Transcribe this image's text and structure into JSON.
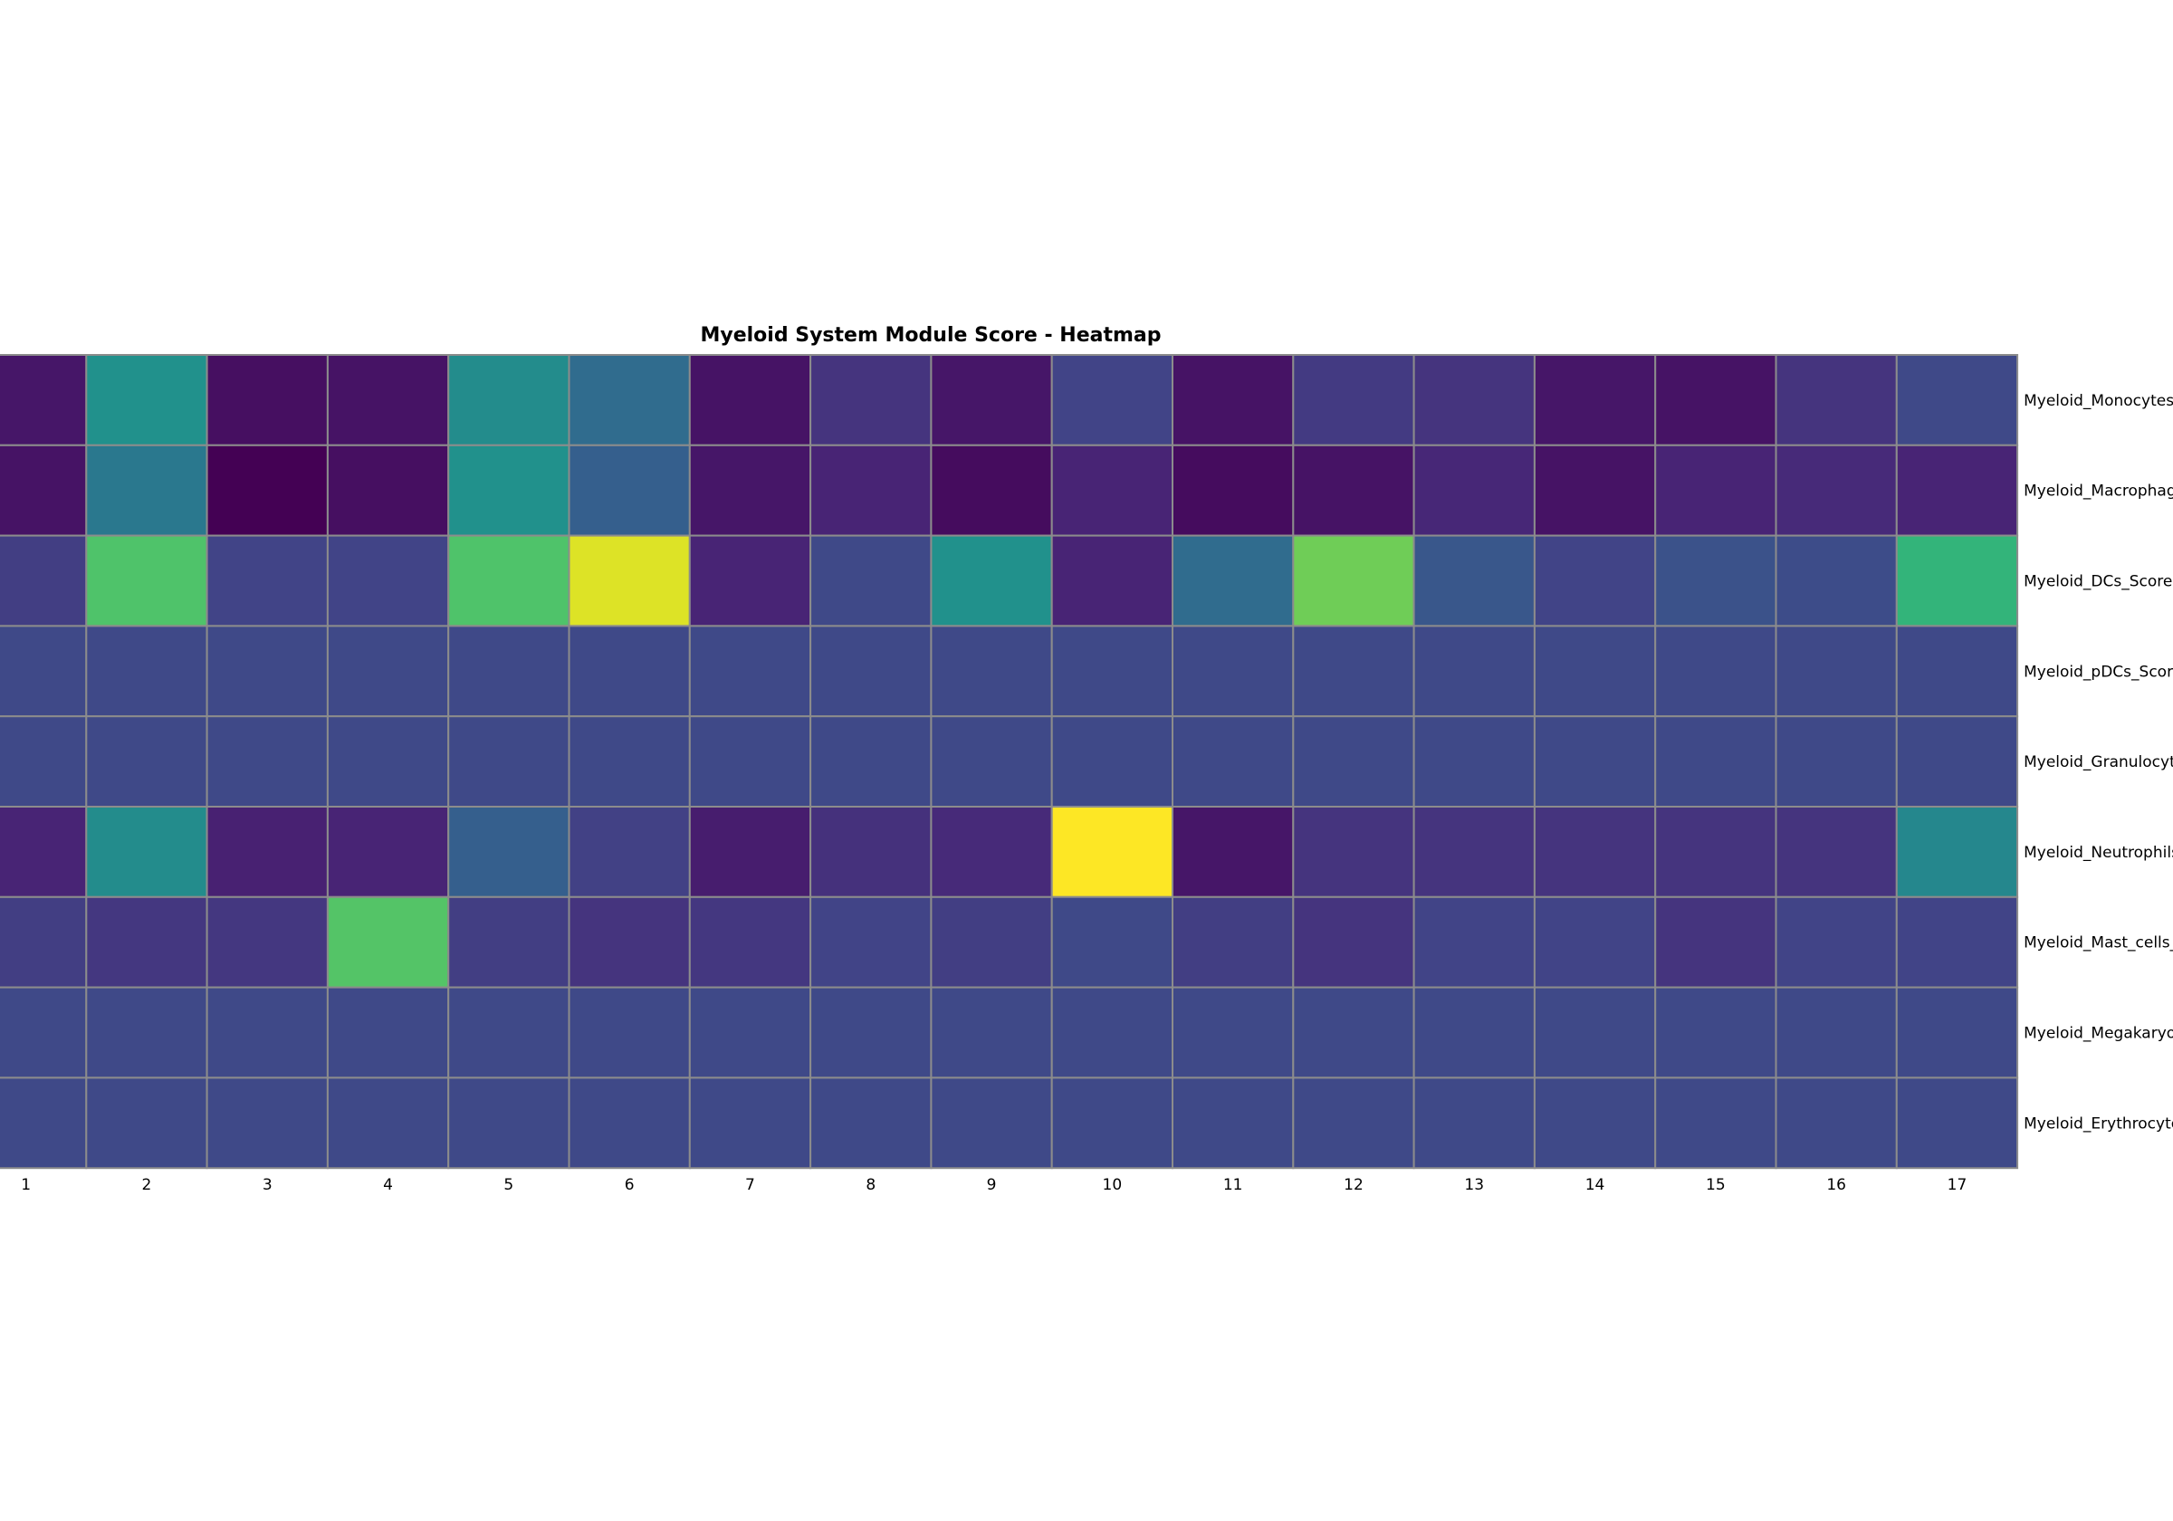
{
  "chart_data": {
    "type": "heatmap",
    "title": "Myeloid System Module Score - Heatmap",
    "colormap": "viridis",
    "x_categories": [
      "1",
      "2",
      "3",
      "4",
      "5",
      "6",
      "7",
      "8",
      "9",
      "10",
      "11",
      "12",
      "13",
      "14",
      "15",
      "16",
      "17"
    ],
    "y_categories": [
      "Myeloid_Monocytes_",
      "Myeloid_Macrophag",
      "Myeloid_DCs_Score",
      "Myeloid_pDCs_Scor",
      "Myeloid_Granulocyt",
      "Myeloid_Neutrophils",
      "Myeloid_Mast_cells_",
      "Myeloid_Megakaryo",
      "Myeloid_Erythrocyte"
    ],
    "values_normalized": [
      [
        0.06,
        0.5,
        0.04,
        0.05,
        0.48,
        0.35,
        0.05,
        0.15,
        0.06,
        0.2,
        0.05,
        0.17,
        0.15,
        0.06,
        0.05,
        0.15,
        0.22
      ],
      [
        0.05,
        0.4,
        0.0,
        0.04,
        0.5,
        0.3,
        0.06,
        0.1,
        0.03,
        0.1,
        0.03,
        0.05,
        0.11,
        0.05,
        0.1,
        0.12,
        0.1
      ],
      [
        0.18,
        0.72,
        0.2,
        0.2,
        0.72,
        0.95,
        0.1,
        0.22,
        0.5,
        0.1,
        0.35,
        0.78,
        0.27,
        0.2,
        0.25,
        0.23,
        0.65
      ],
      [
        0.22,
        0.22,
        0.22,
        0.22,
        0.22,
        0.22,
        0.22,
        0.22,
        0.22,
        0.22,
        0.22,
        0.22,
        0.22,
        0.22,
        0.22,
        0.22,
        0.22
      ],
      [
        0.22,
        0.22,
        0.22,
        0.22,
        0.22,
        0.22,
        0.22,
        0.22,
        0.22,
        0.22,
        0.22,
        0.22,
        0.22,
        0.22,
        0.22,
        0.22,
        0.22
      ],
      [
        0.1,
        0.48,
        0.09,
        0.1,
        0.3,
        0.19,
        0.08,
        0.14,
        0.12,
        1.0,
        0.06,
        0.15,
        0.15,
        0.15,
        0.15,
        0.15,
        0.46
      ],
      [
        0.18,
        0.16,
        0.16,
        0.73,
        0.18,
        0.15,
        0.16,
        0.2,
        0.18,
        0.22,
        0.18,
        0.15,
        0.2,
        0.2,
        0.15,
        0.2,
        0.2
      ],
      [
        0.22,
        0.22,
        0.22,
        0.22,
        0.22,
        0.22,
        0.22,
        0.22,
        0.22,
        0.22,
        0.22,
        0.22,
        0.22,
        0.22,
        0.22,
        0.22,
        0.22
      ],
      [
        0.22,
        0.22,
        0.22,
        0.22,
        0.22,
        0.22,
        0.22,
        0.22,
        0.22,
        0.22,
        0.22,
        0.22,
        0.22,
        0.22,
        0.22,
        0.22,
        0.22
      ]
    ],
    "grid_color": "#8c8c8c",
    "legend": "none"
  }
}
